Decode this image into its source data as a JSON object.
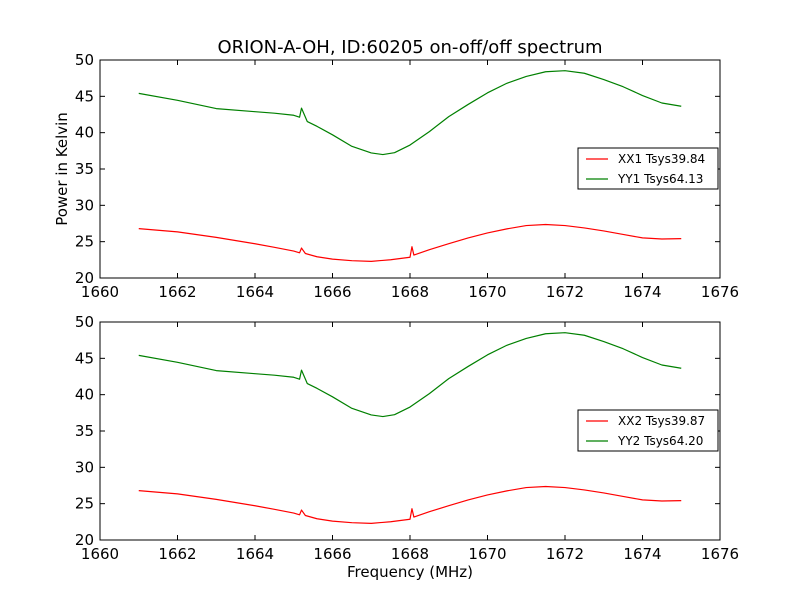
{
  "figure": {
    "title": "ORION-A-OH, ID:60205 on-off/off spectrum",
    "xlabel": "Frequency (MHz)",
    "ylabel": "Power in Kelvin"
  },
  "colors": {
    "xx": "#ff0000",
    "yy": "#008000"
  },
  "chart_data": [
    {
      "type": "line",
      "xlim": [
        1660,
        1676
      ],
      "ylim": [
        20,
        50
      ],
      "xticks": [
        1660,
        1662,
        1664,
        1666,
        1668,
        1670,
        1672,
        1674,
        1676
      ],
      "yticks": [
        20,
        25,
        30,
        35,
        40,
        45,
        50
      ],
      "legend": "right",
      "series": [
        {
          "name": "XX1 Tsys39.84",
          "color": "#ff0000",
          "x": [
            1661.0,
            1662.0,
            1663.0,
            1664.0,
            1664.5,
            1665.0,
            1665.15,
            1665.2,
            1665.3,
            1665.6,
            1666.0,
            1666.5,
            1667.0,
            1667.5,
            1668.0,
            1668.05,
            1668.1,
            1668.5,
            1669.0,
            1669.5,
            1670.0,
            1670.5,
            1671.0,
            1671.5,
            1672.0,
            1672.5,
            1673.0,
            1673.5,
            1674.0,
            1674.5,
            1675.0
          ],
          "y": [
            26.8,
            26.3,
            25.5,
            24.6,
            24.1,
            23.6,
            23.4,
            24.1,
            23.4,
            23.0,
            22.7,
            22.5,
            22.4,
            22.6,
            22.9,
            24.3,
            23.1,
            23.8,
            24.6,
            25.4,
            26.1,
            26.7,
            27.2,
            27.4,
            27.3,
            27.0,
            26.6,
            26.1,
            25.6,
            25.4,
            25.4
          ]
        },
        {
          "name": "YY1 Tsys64.13",
          "color": "#008000",
          "x": [
            1661.0,
            1662.0,
            1663.0,
            1664.0,
            1664.5,
            1665.0,
            1665.15,
            1665.2,
            1665.35,
            1665.6,
            1666.0,
            1666.5,
            1667.0,
            1667.3,
            1667.6,
            1668.0,
            1668.5,
            1669.0,
            1669.5,
            1670.0,
            1670.5,
            1671.0,
            1671.5,
            1672.0,
            1672.5,
            1673.0,
            1673.5,
            1674.0,
            1674.5,
            1675.0
          ],
          "y": [
            45.4,
            44.5,
            43.4,
            43.0,
            42.8,
            42.5,
            42.2,
            43.4,
            41.5,
            40.8,
            39.6,
            38.0,
            37.1,
            36.9,
            37.2,
            38.3,
            40.2,
            42.3,
            44.0,
            45.6,
            46.9,
            47.8,
            48.4,
            48.5,
            48.1,
            47.2,
            46.2,
            45.0,
            44.0,
            43.6
          ]
        }
      ]
    },
    {
      "type": "line",
      "xlim": [
        1660,
        1676
      ],
      "ylim": [
        20,
        50
      ],
      "xticks": [
        1660,
        1662,
        1664,
        1666,
        1668,
        1670,
        1672,
        1674,
        1676
      ],
      "yticks": [
        20,
        25,
        30,
        35,
        40,
        45,
        50
      ],
      "legend": "right",
      "series": [
        {
          "name": "XX2 Tsys39.87",
          "color": "#ff0000",
          "x": [
            1661.0,
            1662.0,
            1663.0,
            1664.0,
            1664.5,
            1665.0,
            1665.15,
            1665.2,
            1665.3,
            1665.6,
            1666.0,
            1666.5,
            1667.0,
            1667.5,
            1668.0,
            1668.05,
            1668.1,
            1668.5,
            1669.0,
            1669.5,
            1670.0,
            1670.5,
            1671.0,
            1671.5,
            1672.0,
            1672.5,
            1673.0,
            1673.5,
            1674.0,
            1674.5,
            1675.0
          ],
          "y": [
            26.8,
            26.3,
            25.5,
            24.6,
            24.1,
            23.6,
            23.4,
            24.1,
            23.4,
            23.0,
            22.7,
            22.5,
            22.4,
            22.6,
            22.9,
            24.3,
            23.1,
            23.8,
            24.6,
            25.4,
            26.1,
            26.7,
            27.2,
            27.4,
            27.3,
            27.0,
            26.6,
            26.1,
            25.6,
            25.4,
            25.4
          ]
        },
        {
          "name": "YY2 Tsys64.20",
          "color": "#008000",
          "x": [
            1661.0,
            1662.0,
            1663.0,
            1664.0,
            1664.5,
            1665.0,
            1665.15,
            1665.2,
            1665.35,
            1665.6,
            1666.0,
            1666.5,
            1667.0,
            1667.3,
            1667.6,
            1668.0,
            1668.5,
            1669.0,
            1669.5,
            1670.0,
            1670.5,
            1671.0,
            1671.5,
            1672.0,
            1672.5,
            1673.0,
            1673.5,
            1674.0,
            1674.5,
            1675.0
          ],
          "y": [
            45.4,
            44.5,
            43.4,
            43.0,
            42.8,
            42.5,
            42.2,
            43.4,
            41.5,
            40.8,
            39.6,
            38.0,
            37.1,
            36.9,
            37.2,
            38.3,
            40.2,
            42.3,
            44.0,
            45.6,
            46.9,
            47.8,
            48.4,
            48.5,
            48.1,
            47.2,
            46.2,
            45.0,
            44.0,
            43.6
          ]
        }
      ]
    }
  ]
}
